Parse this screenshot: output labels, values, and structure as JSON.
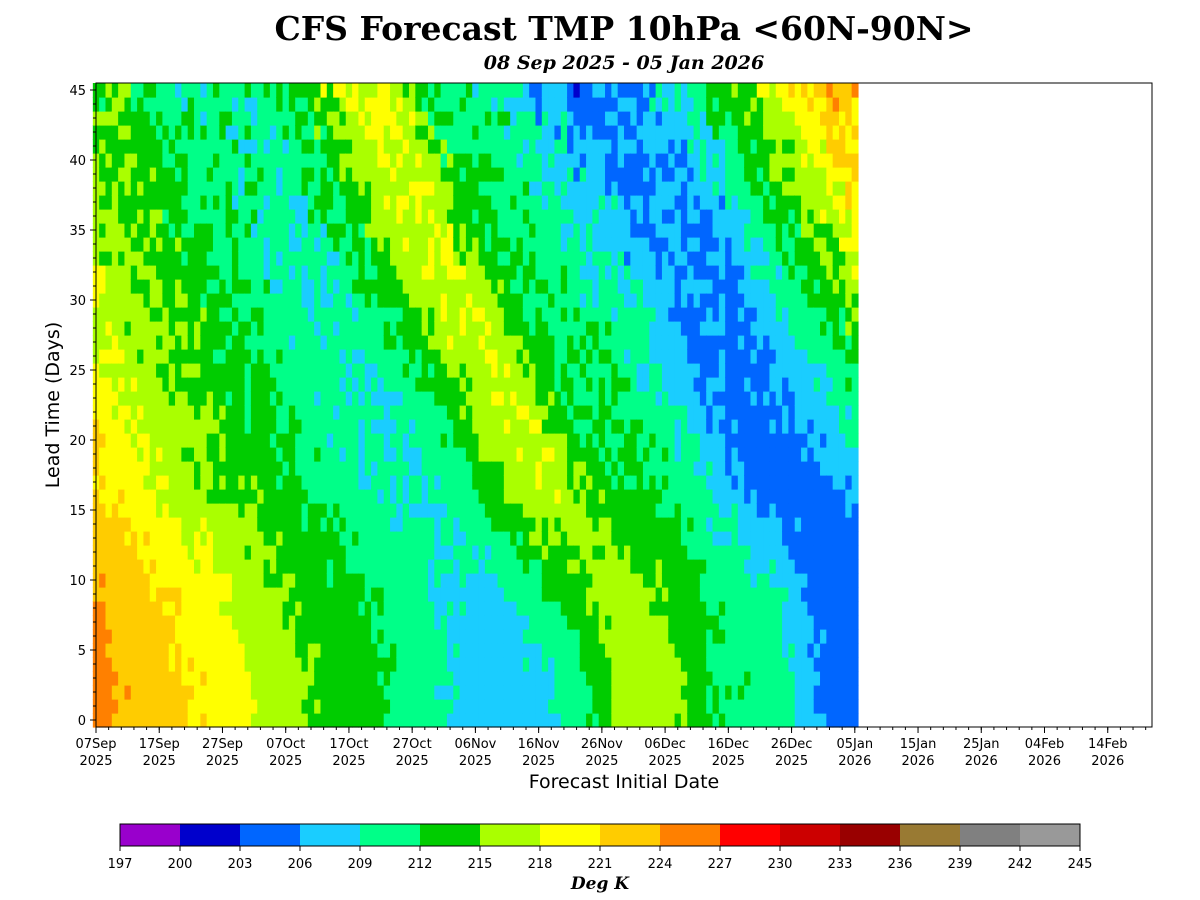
{
  "chart_data": {
    "type": "heatmap",
    "title": "CFS Forecast TMP 10hPa <60N-90N>",
    "subtitle": "08 Sep 2025 - 05 Jan 2026",
    "xlabel": "Forecast Initial Date",
    "ylabel": "Lead Time (Days)",
    "colorbar_label": "Deg K",
    "x_start": "2025-09-07",
    "x_end": "2026-02-21",
    "ylim": [
      0,
      45
    ],
    "last_init_date": "2026-01-05",
    "x_ticks": [
      {
        "date": "2025-09-07",
        "line1": "07Sep",
        "line2": "2025"
      },
      {
        "date": "2025-09-17",
        "line1": "17Sep",
        "line2": "2025"
      },
      {
        "date": "2025-09-27",
        "line1": "27Sep",
        "line2": "2025"
      },
      {
        "date": "2025-10-07",
        "line1": "07Oct",
        "line2": "2025"
      },
      {
        "date": "2025-10-17",
        "line1": "17Oct",
        "line2": "2025"
      },
      {
        "date": "2025-10-27",
        "line1": "27Oct",
        "line2": "2025"
      },
      {
        "date": "2025-11-06",
        "line1": "06Nov",
        "line2": "2025"
      },
      {
        "date": "2025-11-16",
        "line1": "16Nov",
        "line2": "2025"
      },
      {
        "date": "2025-11-26",
        "line1": "26Nov",
        "line2": "2025"
      },
      {
        "date": "2025-12-06",
        "line1": "06Dec",
        "line2": "2025"
      },
      {
        "date": "2025-12-16",
        "line1": "16Dec",
        "line2": "2025"
      },
      {
        "date": "2025-12-26",
        "line1": "26Dec",
        "line2": "2025"
      },
      {
        "date": "2026-01-05",
        "line1": "05Jan",
        "line2": "2026"
      },
      {
        "date": "2026-01-15",
        "line1": "15Jan",
        "line2": "2026"
      },
      {
        "date": "2026-01-25",
        "line1": "25Jan",
        "line2": "2026"
      },
      {
        "date": "2026-02-04",
        "line1": "04Feb",
        "line2": "2026"
      },
      {
        "date": "2026-02-14",
        "line1": "14Feb",
        "line2": "2026"
      }
    ],
    "y_ticks": [
      0,
      5,
      10,
      15,
      20,
      25,
      30,
      35,
      40,
      45
    ],
    "colorbar_levels": [
      197,
      200,
      203,
      206,
      209,
      212,
      215,
      218,
      221,
      224,
      227,
      230,
      233,
      236,
      239,
      242,
      245
    ],
    "colorbar_colors": [
      "#9900cc",
      "#0000cc",
      "#0066ff",
      "#1acdff",
      "#00ff88",
      "#00cc00",
      "#aaff00",
      "#ffff00",
      "#ffcc00",
      "#ff8000",
      "#ff0000",
      "#cc0000",
      "#990000",
      "#997a33",
      "#808080",
      "#999999"
    ],
    "verifying_temperature_anchors": [
      {
        "date": "2025-09-07",
        "value": 225
      },
      {
        "date": "2025-09-16",
        "value": 222.5
      },
      {
        "date": "2025-09-26",
        "value": 220
      },
      {
        "date": "2025-10-04",
        "value": 217
      },
      {
        "date": "2025-10-14",
        "value": 214
      },
      {
        "date": "2025-10-26",
        "value": 211.5
      },
      {
        "date": "2025-11-05",
        "value": 209
      },
      {
        "date": "2025-11-14",
        "value": 208.5
      },
      {
        "date": "2025-11-22",
        "value": 212
      },
      {
        "date": "2025-11-29",
        "value": 218
      },
      {
        "date": "2025-12-06",
        "value": 219
      },
      {
        "date": "2025-12-13",
        "value": 213
      },
      {
        "date": "2025-12-22",
        "value": 211
      },
      {
        "date": "2026-01-01",
        "value": 207
      },
      {
        "date": "2026-01-08",
        "value": 203.5
      },
      {
        "date": "2026-01-15",
        "value": 204
      },
      {
        "date": "2026-01-22",
        "value": 208
      },
      {
        "date": "2026-01-29",
        "value": 213
      },
      {
        "date": "2026-02-05",
        "value": 218
      },
      {
        "date": "2026-02-12",
        "value": 224
      },
      {
        "date": "2026-02-20",
        "value": 226
      }
    ],
    "init_temperature_anchors": [
      {
        "date": "2025-09-07",
        "value": 225
      },
      {
        "date": "2025-09-16",
        "value": 222.5
      },
      {
        "date": "2025-09-26",
        "value": 220
      },
      {
        "date": "2025-10-05",
        "value": 217
      },
      {
        "date": "2025-10-14",
        "value": 214
      },
      {
        "date": "2025-10-24",
        "value": 212
      },
      {
        "date": "2025-11-06",
        "value": 207.5
      },
      {
        "date": "2025-11-16",
        "value": 208
      },
      {
        "date": "2025-11-22",
        "value": 210
      },
      {
        "date": "2025-11-29",
        "value": 216
      },
      {
        "date": "2025-12-06",
        "value": 217
      },
      {
        "date": "2025-12-13",
        "value": 212
      },
      {
        "date": "2025-12-24",
        "value": 211
      },
      {
        "date": "2025-12-30",
        "value": 206
      },
      {
        "date": "2026-01-05",
        "value": 204.5
      }
    ],
    "init_weight_per_day": 0.06
  }
}
